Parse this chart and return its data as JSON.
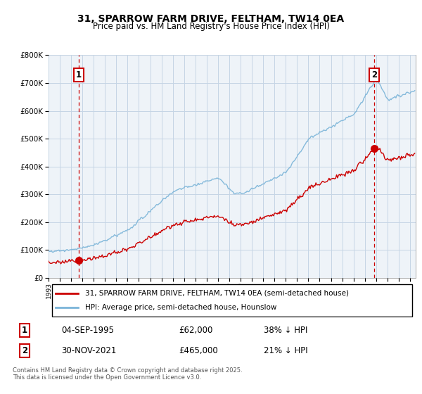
{
  "title": "31, SPARROW FARM DRIVE, FELTHAM, TW14 0EA",
  "subtitle": "Price paid vs. HM Land Registry's House Price Index (HPI)",
  "hpi_label": "HPI: Average price, semi-detached house, Hounslow",
  "property_label": "31, SPARROW FARM DRIVE, FELTHAM, TW14 0EA (semi-detached house)",
  "sale1_date": "04-SEP-1995",
  "sale1_price": 62000,
  "sale1_hpi": "38% ↓ HPI",
  "sale2_date": "30-NOV-2021",
  "sale2_price": 465000,
  "sale2_hpi": "21% ↓ HPI",
  "footer": "Contains HM Land Registry data © Crown copyright and database right 2025.\nThis data is licensed under the Open Government Licence v3.0.",
  "hpi_color": "#7ab4d8",
  "property_color": "#cc0000",
  "marker_color": "#cc0000",
  "grid_color": "#c8d8e8",
  "ylim": [
    0,
    800000
  ],
  "yticks": [
    0,
    100000,
    200000,
    300000,
    400000,
    500000,
    600000,
    700000,
    800000
  ],
  "xmin": 1993,
  "xmax": 2025.5
}
